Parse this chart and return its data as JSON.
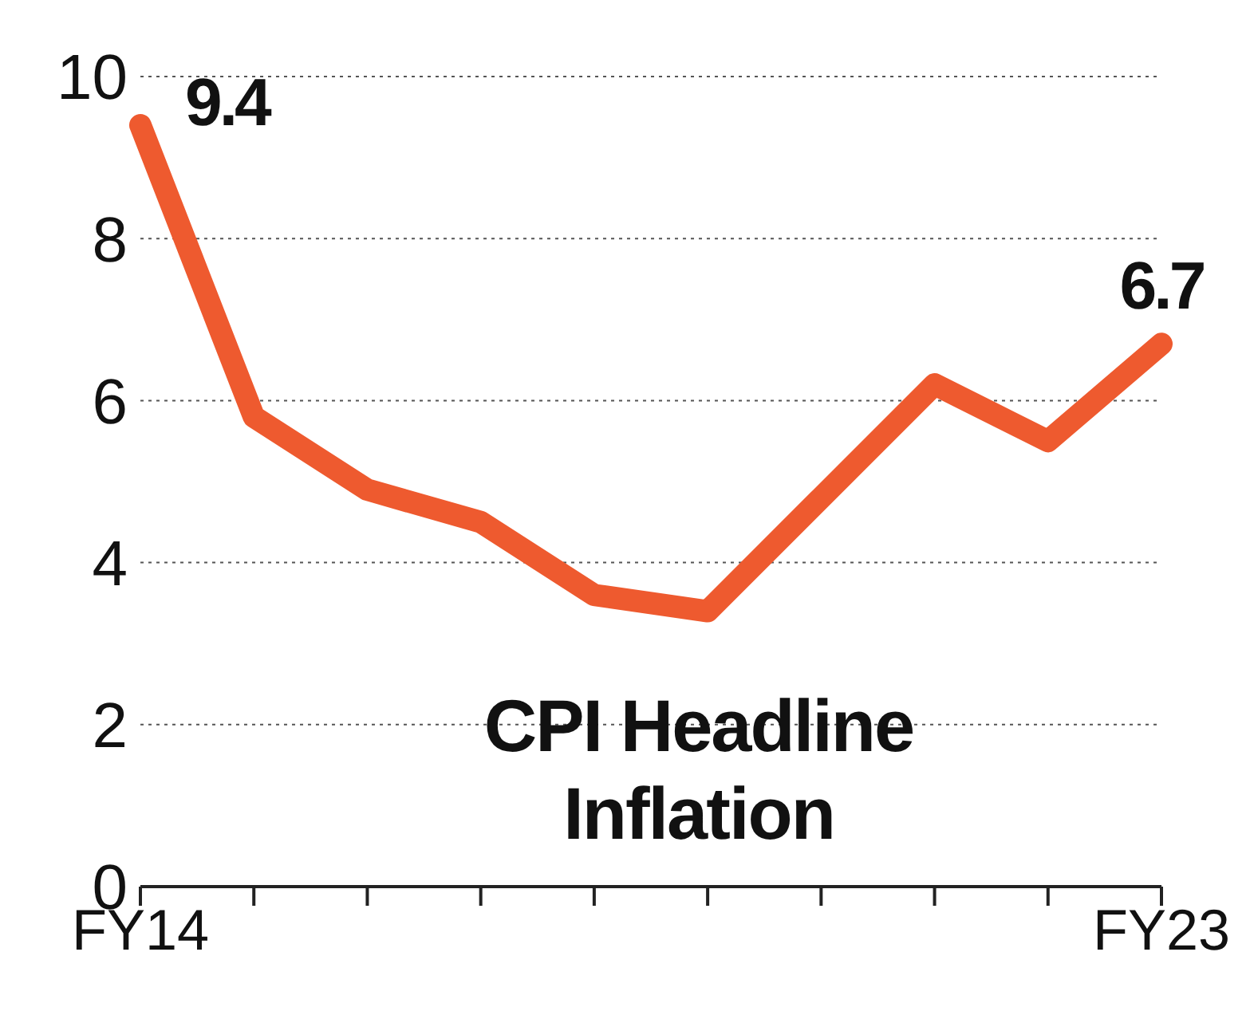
{
  "chart_data": {
    "type": "line",
    "categories": [
      "FY14",
      null,
      null,
      null,
      null,
      null,
      null,
      null,
      null,
      "FY23"
    ],
    "series": [
      {
        "color": "#ee5a2f",
        "values": [
          9.4,
          5.8,
          4.9,
          4.5,
          3.6,
          3.4,
          4.8,
          6.2,
          5.5,
          6.7
        ],
        "value_labels": [
          "9.4",
          null,
          null,
          null,
          null,
          null,
          null,
          null,
          null,
          "6.7"
        ]
      }
    ],
    "ylim": [
      0,
      10
    ],
    "yticks": [
      0,
      2,
      4,
      6,
      8,
      10
    ],
    "grid": "y",
    "marker": "none",
    "line_style": "solid",
    "annotations": [
      "CPI Headline Inflation"
    ]
  }
}
